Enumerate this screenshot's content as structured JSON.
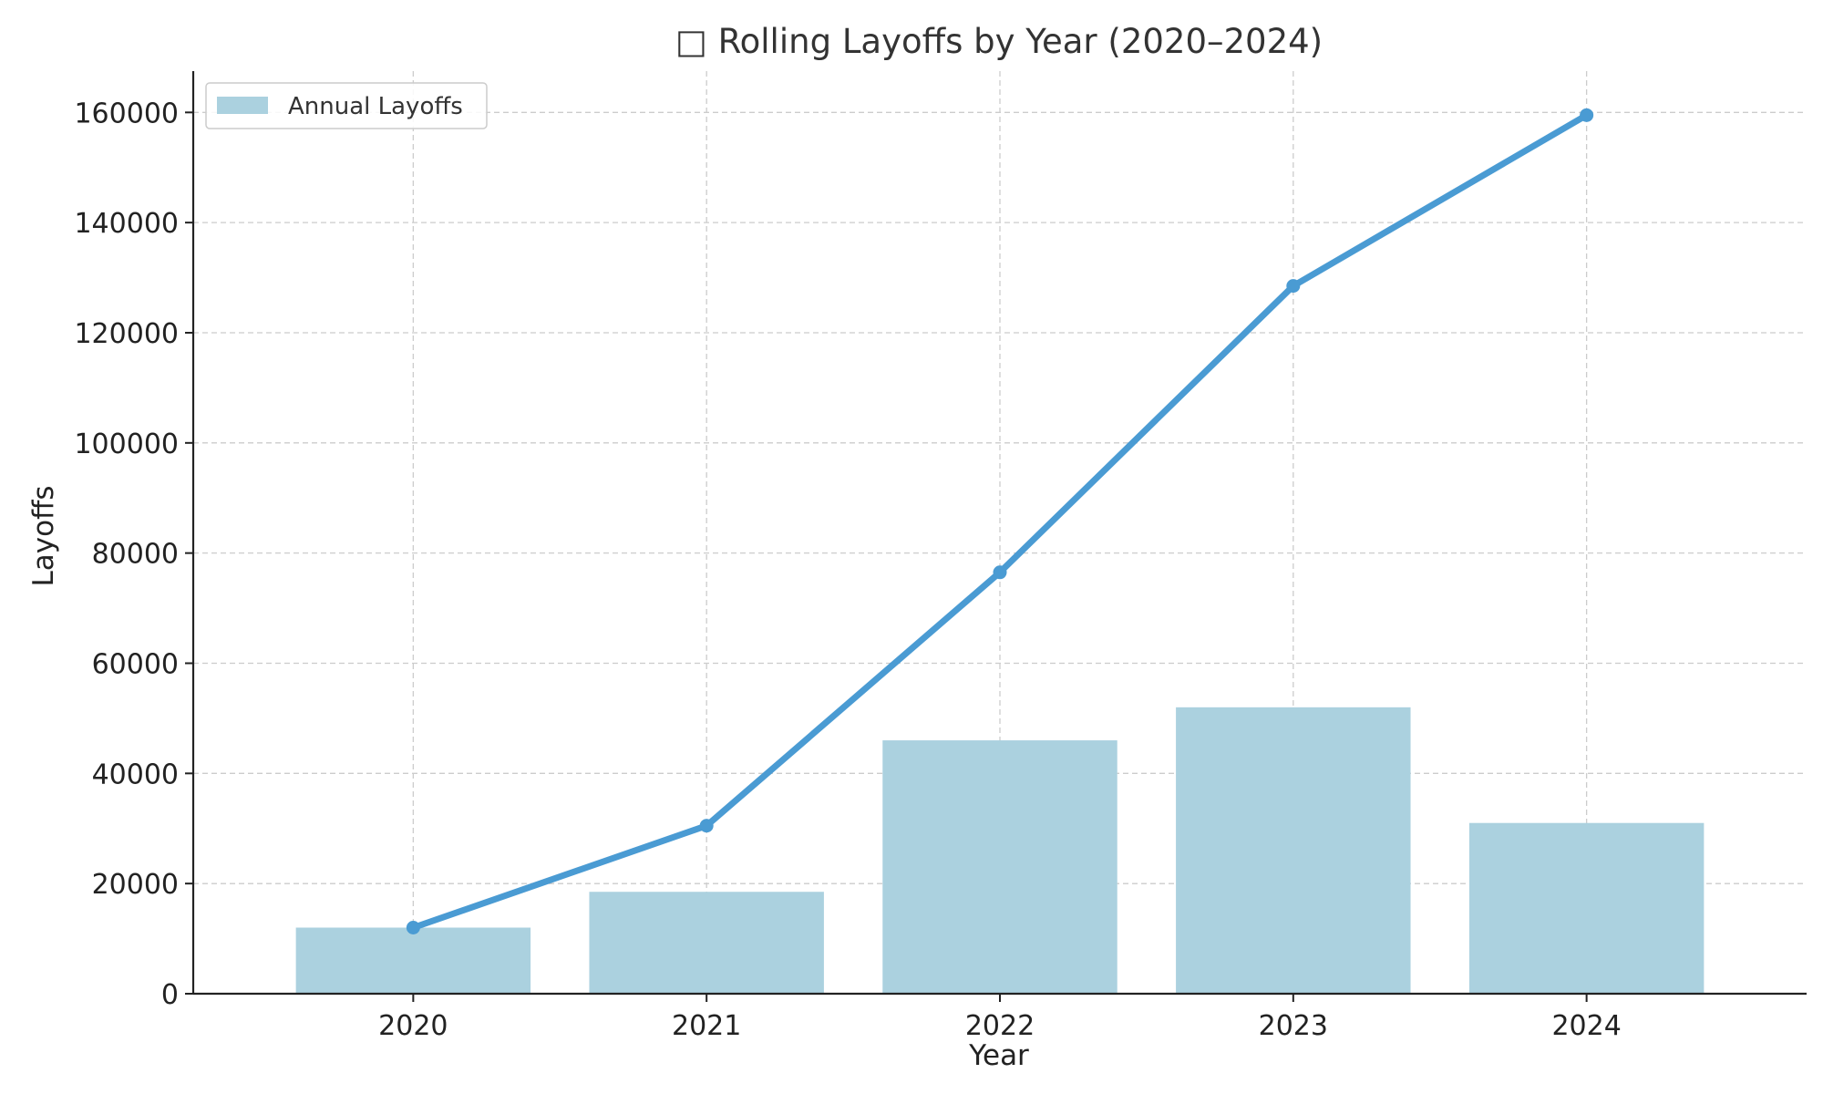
{
  "chart_data": {
    "type": "bar",
    "title": "□ Rolling Layoffs by Year (2020–2024)",
    "xlabel": "Year",
    "ylabel": "Layoffs",
    "categories": [
      "2020",
      "2021",
      "2022",
      "2023",
      "2024"
    ],
    "series": [
      {
        "name": "Annual Layoffs",
        "type": "bar",
        "values": [
          12000,
          18500,
          46000,
          52000,
          31000
        ],
        "color": "#abd1df"
      },
      {
        "type": "line",
        "values": [
          12000,
          30500,
          76500,
          128500,
          159500
        ],
        "color": "#4a9bd3"
      }
    ],
    "ylim": [
      0,
      167500
    ],
    "yticks": [
      0,
      20000,
      40000,
      60000,
      80000,
      100000,
      120000,
      140000,
      160000
    ],
    "grid": true,
    "legend_position": "top-left"
  }
}
